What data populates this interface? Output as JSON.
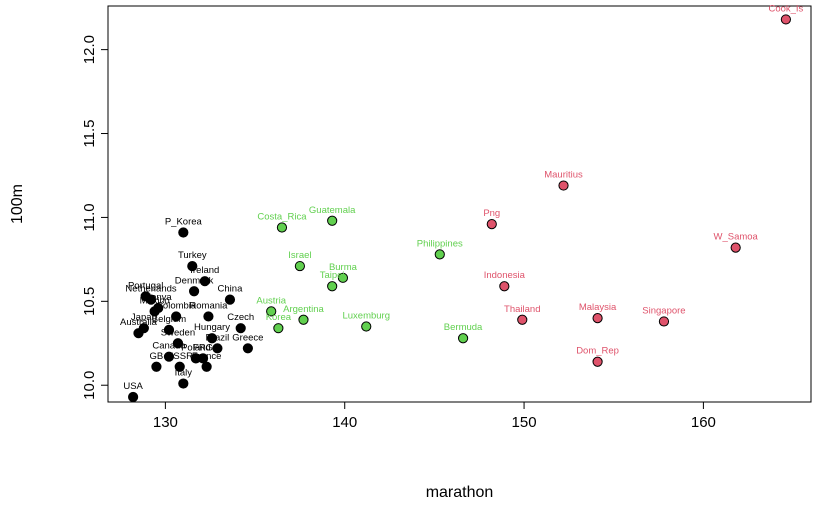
{
  "chart_data": {
    "type": "scatter",
    "title": "",
    "xlabel": "marathon",
    "ylabel": "100m",
    "xlim": [
      126.8,
      166.0
    ],
    "ylim": [
      9.9,
      12.26
    ],
    "xticks": [
      130,
      140,
      150,
      160
    ],
    "yticks": [
      10.0,
      10.5,
      11.0,
      11.5,
      12.0
    ],
    "xtick_labels": [
      "130",
      "140",
      "150",
      "160"
    ],
    "ytick_labels": [
      "10.0",
      "10.5",
      "11.0",
      "11.5",
      "12.0"
    ],
    "grid": false,
    "legend": "none",
    "series": [
      {
        "color": "#000000",
        "fill": "#000000",
        "points": [
          {
            "label": "USA",
            "x": 128.2,
            "y": 9.93
          },
          {
            "label": "P_Korea",
            "x": 131.0,
            "y": 10.91
          },
          {
            "label": "Turkey",
            "x": 131.5,
            "y": 10.71
          },
          {
            "label": "Ireland",
            "x": 132.2,
            "y": 10.62
          },
          {
            "label": "Denmark",
            "x": 131.6,
            "y": 10.56
          },
          {
            "label": "Portugal",
            "x": 128.9,
            "y": 10.53
          },
          {
            "label": "Netherlands",
            "x": 129.2,
            "y": 10.51
          },
          {
            "label": "Kenya",
            "x": 129.6,
            "y": 10.46
          },
          {
            "label": "China",
            "x": 133.6,
            "y": 10.51
          },
          {
            "label": "Mexico",
            "x": 129.4,
            "y": 10.44
          },
          {
            "label": "Colombia",
            "x": 130.6,
            "y": 10.41
          },
          {
            "label": "Romania",
            "x": 132.4,
            "y": 10.41
          },
          {
            "label": "Japan",
            "x": 128.8,
            "y": 10.34
          },
          {
            "label": "Belgium",
            "x": 130.2,
            "y": 10.33
          },
          {
            "label": "Australia",
            "x": 128.5,
            "y": 10.31
          },
          {
            "label": "Czech",
            "x": 134.2,
            "y": 10.34
          },
          {
            "label": "Sweden",
            "x": 130.7,
            "y": 10.25
          },
          {
            "label": "Hungary",
            "x": 132.6,
            "y": 10.28
          },
          {
            "label": "Brazil",
            "x": 132.9,
            "y": 10.22
          },
          {
            "label": "Greece",
            "x": 134.6,
            "y": 10.22
          },
          {
            "label": "Canada",
            "x": 130.2,
            "y": 10.17
          },
          {
            "label": "Poland",
            "x": 131.7,
            "y": 10.16
          },
          {
            "label": "FRG",
            "x": 132.1,
            "y": 10.16
          },
          {
            "label": "GB",
            "x": 129.5,
            "y": 10.11
          },
          {
            "label": "USSR",
            "x": 130.8,
            "y": 10.11
          },
          {
            "label": "France",
            "x": 132.3,
            "y": 10.11
          },
          {
            "label": "Italy",
            "x": 131.0,
            "y": 10.01
          }
        ]
      },
      {
        "color": "#2e8b2e",
        "fill": "#61d04f",
        "points": [
          {
            "label": "Costa_Rica",
            "x": 136.5,
            "y": 10.94
          },
          {
            "label": "Guatemala",
            "x": 139.3,
            "y": 10.98
          },
          {
            "label": "Israel",
            "x": 137.5,
            "y": 10.71
          },
          {
            "label": "Burma",
            "x": 139.9,
            "y": 10.64
          },
          {
            "label": "Taipei",
            "x": 139.3,
            "y": 10.59
          },
          {
            "label": "Philippines",
            "x": 145.3,
            "y": 10.78
          },
          {
            "label": "Austria",
            "x": 135.9,
            "y": 10.44
          },
          {
            "label": "Argentina",
            "x": 137.7,
            "y": 10.39
          },
          {
            "label": "Korea",
            "x": 136.3,
            "y": 10.34
          },
          {
            "label": "Luxemburg",
            "x": 141.2,
            "y": 10.35
          },
          {
            "label": "Bermuda",
            "x": 146.6,
            "y": 10.28
          }
        ]
      },
      {
        "color": "#a0304a",
        "fill": "#df536b",
        "points": [
          {
            "label": "Cook_Is",
            "x": 164.6,
            "y": 12.18
          },
          {
            "label": "Mauritius",
            "x": 152.2,
            "y": 11.19
          },
          {
            "label": "Png",
            "x": 148.2,
            "y": 10.96
          },
          {
            "label": "W_Samoa",
            "x": 161.8,
            "y": 10.82
          },
          {
            "label": "Indonesia",
            "x": 148.9,
            "y": 10.59
          },
          {
            "label": "Thailand",
            "x": 149.9,
            "y": 10.39
          },
          {
            "label": "Malaysia",
            "x": 154.1,
            "y": 10.4
          },
          {
            "label": "Singapore",
            "x": 157.8,
            "y": 10.38
          },
          {
            "label": "Dom_Rep",
            "x": 154.1,
            "y": 10.14
          }
        ]
      }
    ]
  }
}
